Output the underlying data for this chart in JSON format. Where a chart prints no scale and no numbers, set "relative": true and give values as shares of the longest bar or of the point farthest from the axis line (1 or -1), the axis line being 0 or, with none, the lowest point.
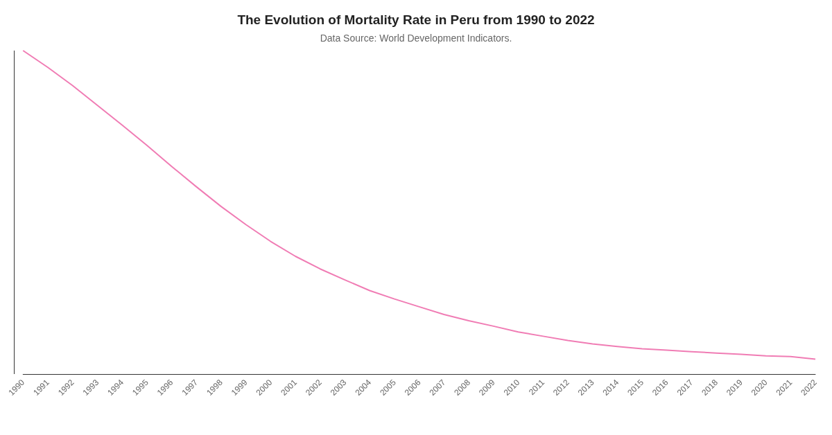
{
  "chart_data": {
    "type": "line",
    "title": "The Evolution of Mortality Rate in Peru from 1990 to 2022",
    "subtitle": "Data Source: World Development Indicators.",
    "relative": true,
    "grid": false,
    "marker": "none",
    "line_style": "solid",
    "categories": [
      "1990",
      "1991",
      "1992",
      "1993",
      "1994",
      "1995",
      "1996",
      "1997",
      "1998",
      "1999",
      "2000",
      "2001",
      "2002",
      "2003",
      "2004",
      "2005",
      "2006",
      "2007",
      "2008",
      "2009",
      "2010",
      "2011",
      "2012",
      "2013",
      "2014",
      "2015",
      "2016",
      "2017",
      "2018",
      "2019",
      "2020",
      "2021",
      "2022"
    ],
    "series": [
      {
        "color": "#f07cb4",
        "values": [
          1,
          0.948,
          0.892,
          0.831,
          0.77,
          0.707,
          0.642,
          0.579,
          0.518,
          0.462,
          0.41,
          0.364,
          0.325,
          0.291,
          0.258,
          0.232,
          0.208,
          0.184,
          0.165,
          0.148,
          0.13,
          0.117,
          0.104,
          0.093,
          0.085,
          0.078,
          0.074,
          0.069,
          0.065,
          0.061,
          0.056,
          0.054,
          0.046
        ]
      }
    ]
  }
}
